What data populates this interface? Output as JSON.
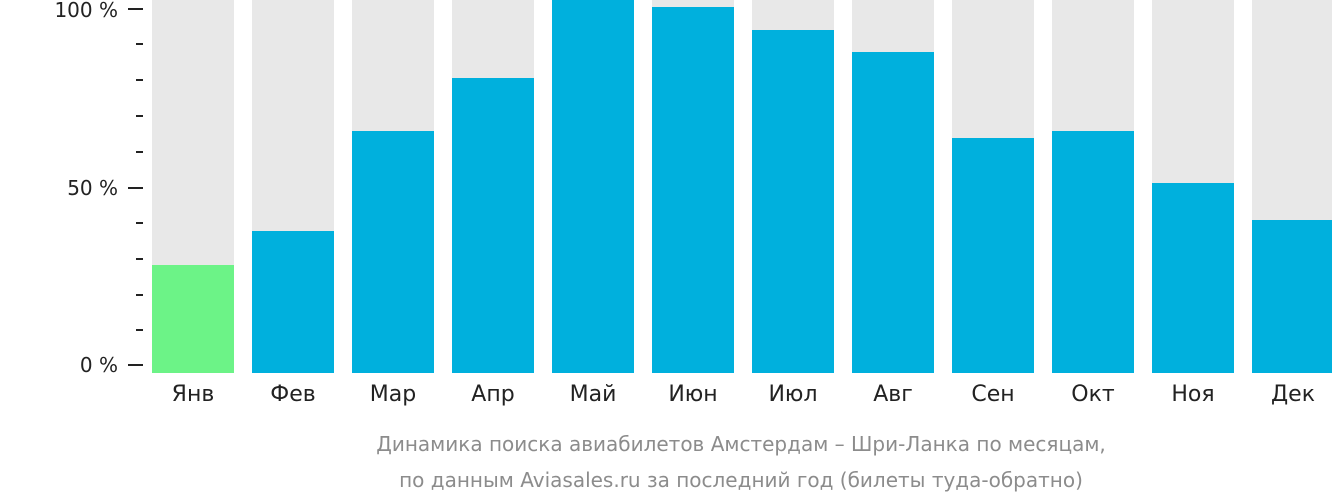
{
  "chart_data": {
    "type": "bar",
    "title": "Динамика поиска авиабилетов Амстердам – Шри-Ланка по месяцам,",
    "subtitle": "по данным Aviasales.ru за последний год (билеты туда-обратно)",
    "xlabel": "",
    "ylabel": "",
    "ylim": [
      0,
      100
    ],
    "yticks": [
      "0 %",
      "50 %",
      "100 %"
    ],
    "categories": [
      "Янв",
      "Фев",
      "Мар",
      "Апр",
      "Май",
      "Июн",
      "Июл",
      "Авг",
      "Сен",
      "Окт",
      "Ноя",
      "Дек"
    ],
    "values": [
      29,
      38,
      65,
      79,
      100,
      98,
      92,
      86,
      63,
      65,
      51,
      41
    ],
    "colors": {
      "default": "#00b0dd",
      "lowest": "#6cf387",
      "background": "#e8e8e8"
    },
    "grid": false,
    "legend": null
  },
  "axis": {
    "y100": "100 %",
    "y50": "50 %",
    "y0": "0 %"
  },
  "caption": {
    "line1": "Динамика поиска авиабилетов Амстердам – Шри-Ланка по месяцам,",
    "line2": "по данным Aviasales.ru за последний год (билеты туда-обратно)"
  }
}
